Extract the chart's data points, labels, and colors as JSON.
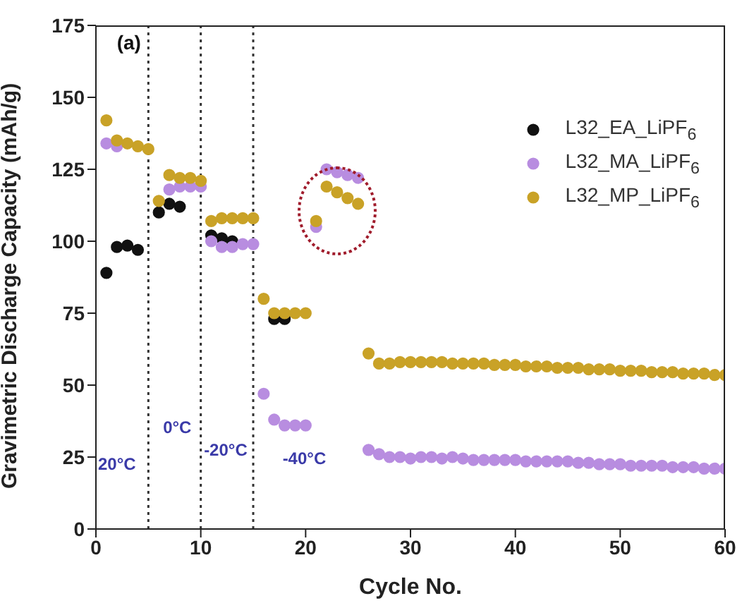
{
  "chart_data": {
    "type": "scatter",
    "xlabel": "Cycle No.",
    "ylabel": "Gravimetric Discharge Capacity (mAh/g)",
    "x": [
      1,
      2,
      3,
      4,
      5,
      6,
      7,
      8,
      9,
      10,
      11,
      12,
      13,
      14,
      15,
      16,
      17,
      18,
      19,
      20,
      21,
      22,
      23,
      24,
      25,
      26,
      27,
      28,
      29,
      30,
      31,
      32,
      33,
      34,
      35,
      36,
      37,
      38,
      39,
      40,
      41,
      42,
      43,
      44,
      45,
      46,
      47,
      48,
      49,
      50,
      51,
      52,
      53,
      54,
      55,
      56,
      57,
      58,
      59,
      60
    ],
    "series": [
      {
        "name": "L32_EA_LiPF$_{6}$",
        "color": "#111111",
        "values": [
          89,
          98,
          98.5,
          97,
          null,
          110,
          113,
          112,
          null,
          null,
          102,
          101,
          100,
          null,
          null,
          null,
          73,
          73,
          null,
          null,
          null,
          null,
          null,
          null,
          null,
          null,
          null,
          null,
          null,
          null,
          null,
          null,
          null,
          null,
          null,
          null,
          null,
          null,
          null,
          null,
          null,
          null,
          null,
          null,
          null,
          null,
          null,
          null,
          null,
          null,
          null,
          null,
          null,
          null,
          null,
          null,
          null,
          null,
          null,
          null
        ]
      },
      {
        "name": "L32_MA_LiPF$_{6}$",
        "color": "#b88de0",
        "values": [
          134,
          133,
          null,
          null,
          null,
          null,
          118,
          119,
          119,
          119,
          100,
          98,
          98,
          99,
          99,
          47,
          38,
          36,
          36,
          36,
          105,
          125,
          124,
          123,
          122,
          27.5,
          26,
          25,
          25,
          24.5,
          25,
          25,
          24.5,
          25,
          24.5,
          24,
          24,
          24,
          24,
          24,
          23.5,
          23.5,
          23.5,
          23.5,
          23.5,
          23,
          23,
          22.5,
          22.5,
          22.5,
          22,
          22,
          22,
          22,
          21.5,
          21.5,
          21.5,
          21,
          21,
          21
        ]
      },
      {
        "name": "L32_MP_LiPF$_{6}$",
        "color": "#c9a227",
        "values": [
          142,
          135,
          134,
          133,
          132,
          114,
          123,
          122,
          122,
          121,
          107,
          108,
          108,
          108,
          108,
          80,
          75,
          75,
          75,
          75,
          107,
          119,
          117,
          115,
          113,
          61,
          57.5,
          57.5,
          58,
          58,
          58,
          58,
          58,
          57.5,
          57.5,
          57.5,
          57.5,
          57,
          57,
          57,
          56.5,
          56.5,
          56.5,
          56,
          56,
          56,
          55.5,
          55.5,
          55.5,
          55,
          55,
          55,
          54.5,
          54.5,
          54.5,
          54,
          54,
          54,
          53.5,
          53.5
        ]
      }
    ],
    "xlim": [
      0,
      60
    ],
    "xticks": [
      0,
      10,
      20,
      30,
      40,
      50,
      60
    ],
    "ylim": [
      0,
      175
    ],
    "yticks": [
      0,
      25,
      50,
      75,
      100,
      125,
      150,
      175
    ],
    "ref_lines": [
      {
        "axis": "x",
        "value": 5,
        "color": "#333333",
        "line_style": "dotted"
      },
      {
        "axis": "x",
        "value": 10,
        "color": "#333333",
        "line_style": "dotted"
      },
      {
        "axis": "x",
        "value": 15,
        "color": "#333333",
        "line_style": "dotted"
      }
    ],
    "annotations": [
      "(a)",
      "20°C",
      "0°C",
      "-20°C",
      "-40°C"
    ],
    "marker": "circle",
    "legend": "top right",
    "grid": false
  }
}
